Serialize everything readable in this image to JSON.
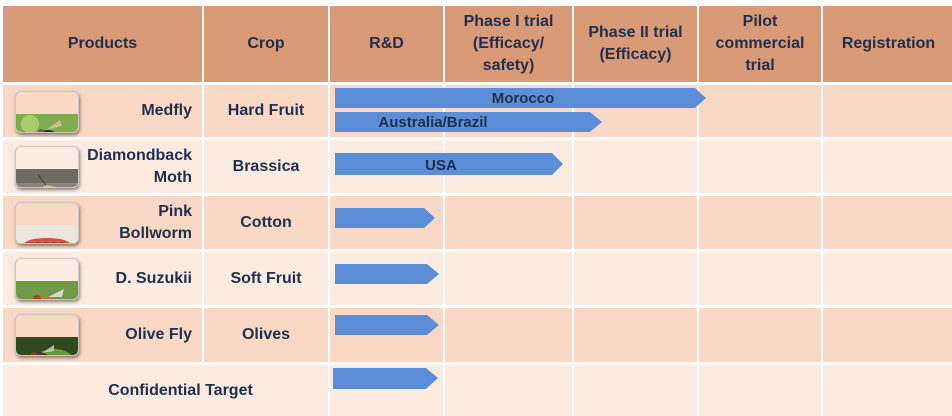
{
  "headers": {
    "products": "Products",
    "crop": "Crop",
    "rnd": "R&D",
    "phase1": "Phase I trial\n(Efficacy/\nsafety)",
    "phase2": "Phase II trial\n(Efficacy)",
    "pilot": "Pilot\ncommercial\ntrial",
    "registration": "Registration"
  },
  "rows": [
    {
      "product": "Medfly",
      "crop": "Hard Fruit",
      "image": "medfly-photo"
    },
    {
      "product": "Diamondback\nMoth",
      "crop": "Brassica",
      "image": "moth-photo"
    },
    {
      "product": "Pink\nBollworm",
      "crop": "Cotton",
      "image": "bollworm-photo"
    },
    {
      "product": "D. Suzukii",
      "crop": "Soft Fruit",
      "image": "fruit-fly-photo"
    },
    {
      "product": "Olive Fly",
      "crop": "Olives",
      "image": "olive-fly-photo"
    },
    {
      "product": "Confidential Target",
      "crop": ""
    }
  ],
  "progress_labels": {
    "morocco": "Morocco",
    "australia_brazil": "Australia/Brazil",
    "usa": "USA"
  },
  "colors": {
    "header_bg": "#d99a77",
    "row_odd": "#f9d9c5",
    "row_even": "#fcebe1",
    "arrow": "#5b8ed6",
    "text": "#1f2f4d"
  }
}
